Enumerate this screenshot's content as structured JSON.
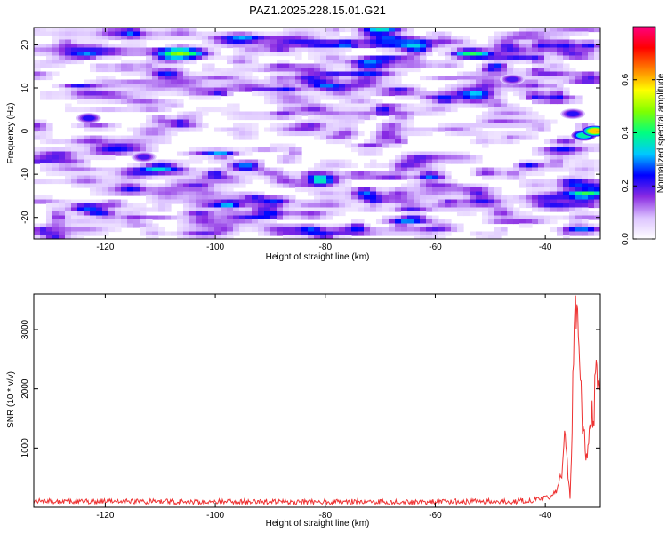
{
  "title": "PAZ1.2025.228.15.01.G21",
  "chart_data": [
    {
      "type": "heatmap",
      "xlabel": "Height of straight line (km)",
      "ylabel": "Frequency (Hz)",
      "xlim": [
        -133,
        -30
      ],
      "ylim": [
        -25,
        24
      ],
      "xticks": [
        -120,
        -100,
        -80,
        -60,
        -40
      ],
      "yticks": [
        -20,
        -10,
        0,
        10,
        20
      ],
      "grid": false,
      "colorbar": {
        "label": "Normalized spectral amplitude",
        "range": [
          0,
          0.8
        ],
        "ticks": [
          0.0,
          0.2,
          0.4,
          0.6
        ],
        "tick_labels": [
          "0.0",
          "0.2",
          "0.4",
          "0.6"
        ],
        "colors": [
          "#ffffff",
          "#dcc3ff",
          "#8a2be2",
          "#0000ff",
          "#00c8ff",
          "#00ff80",
          "#80ff00",
          "#ffff00",
          "#ff8000",
          "#ff0000",
          "#ff0080"
        ]
      },
      "features": [
        {
          "x": -123,
          "y": 3,
          "value": 0.22
        },
        {
          "x": -113,
          "y": -6,
          "value": 0.2
        },
        {
          "x": -46,
          "y": 12,
          "value": 0.2
        },
        {
          "x": -35,
          "y": 4,
          "value": 0.22
        },
        {
          "x": -33,
          "y": -1,
          "value": 0.38
        },
        {
          "x": -31,
          "y": 0,
          "value": 0.6
        }
      ]
    },
    {
      "type": "line",
      "xlabel": "Height of straight line (km)",
      "ylabel": "SNR (10 * v/v)",
      "xlim": [
        -133,
        -30
      ],
      "ylim": [
        0,
        3600
      ],
      "xticks": [
        -120,
        -100,
        -80,
        -60,
        -40
      ],
      "yticks": [
        1000,
        2000,
        3000
      ],
      "grid": false,
      "series": [
        {
          "color": "#ee3333",
          "x": [
            -133,
            -125,
            -115,
            -105,
            -95,
            -85,
            -75,
            -65,
            -55,
            -45,
            -41,
            -39,
            -38,
            -37,
            -36.5,
            -36,
            -35.5,
            -35,
            -34.5,
            -34,
            -33.5,
            -33,
            -32.5,
            -32,
            -31.5,
            -31,
            -30.5,
            -30
          ],
          "y": [
            100,
            95,
            100,
            90,
            95,
            90,
            95,
            90,
            95,
            100,
            130,
            180,
            260,
            550,
            1280,
            700,
            150,
            1900,
            3580,
            2700,
            1800,
            1200,
            950,
            1150,
            1500,
            1850,
            2400,
            2200
          ]
        }
      ]
    }
  ]
}
